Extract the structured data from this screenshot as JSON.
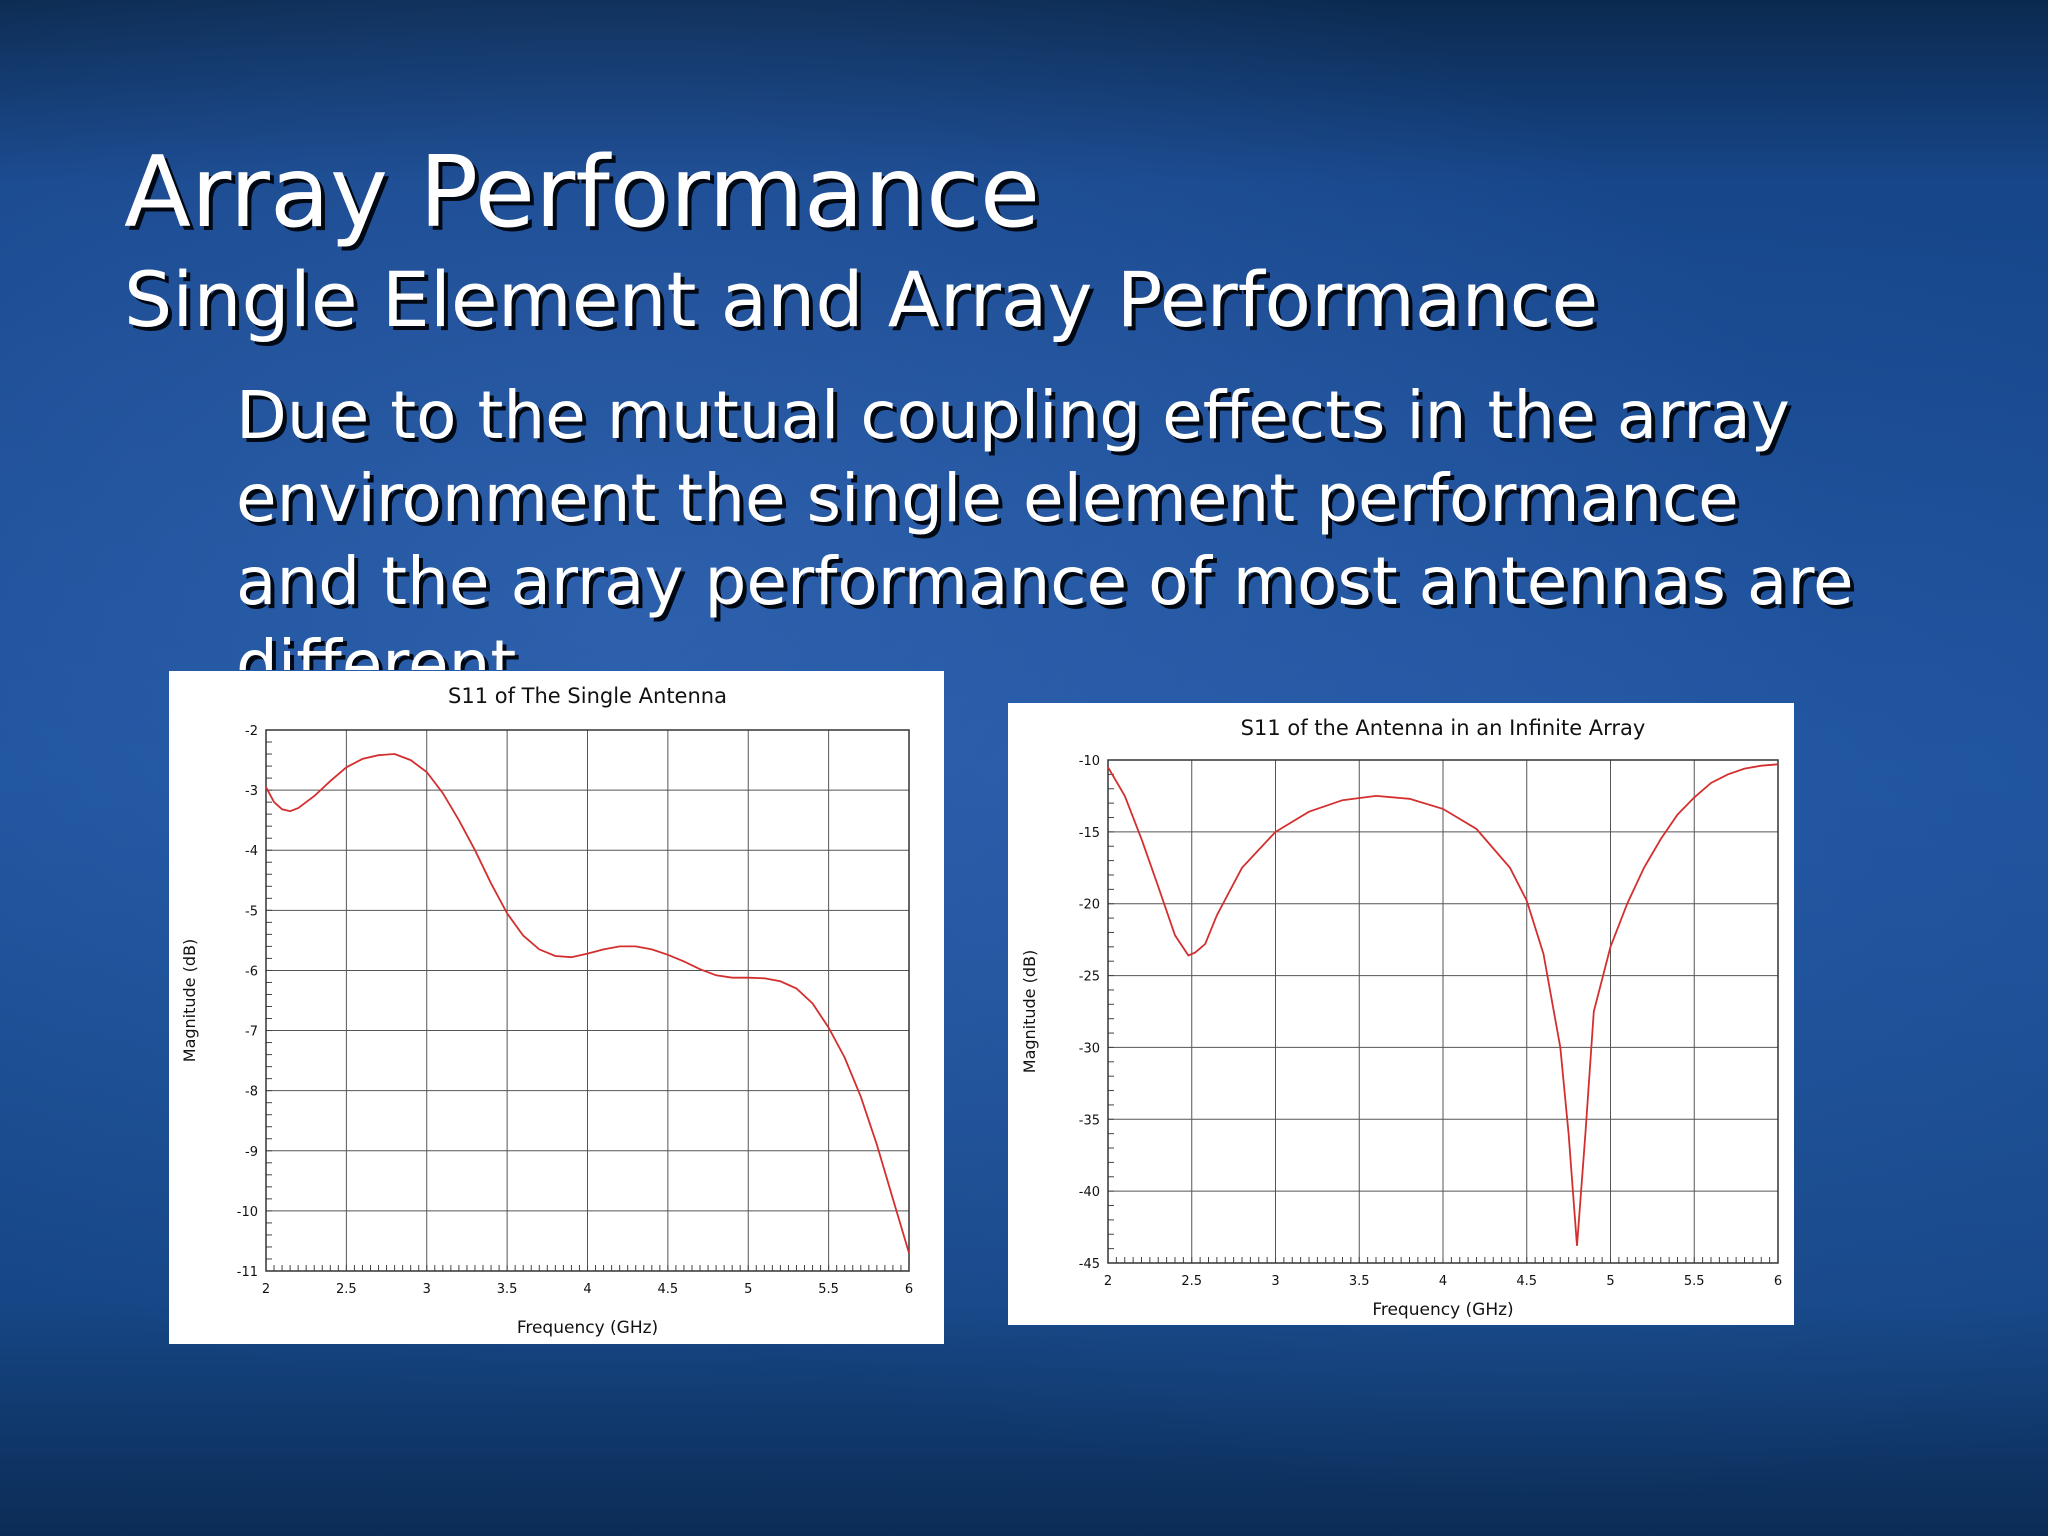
{
  "slide": {
    "title": "Array Performance",
    "subtitle": "Single Element and Array Performance",
    "body": "Due to the mutual coupling effects in the array environment the single element performance and the array performance of most antennas are different"
  },
  "chart_data": [
    {
      "type": "line",
      "title": "S11 of The Single Antenna",
      "xlabel": "Frequency (GHz)",
      "ylabel": "Magnitude (dB)",
      "xlim": [
        2,
        6
      ],
      "ylim": [
        -11,
        -2
      ],
      "xticks": [
        2,
        2.5,
        3,
        3.5,
        4,
        4.5,
        5,
        5.5,
        6
      ],
      "xtick_labels": [
        "2",
        "2.5",
        "3",
        "3.5",
        "4",
        "4.5",
        "5",
        "5.5",
        "6"
      ],
      "yticks": [
        -2,
        -3,
        -4,
        -5,
        -6,
        -7,
        -8,
        -9,
        -10,
        -11
      ],
      "ytick_labels": [
        "-2",
        "-3",
        "-4",
        "-5",
        "-6",
        "-7",
        "-8",
        "-9",
        "-10",
        "-11"
      ],
      "grid": true,
      "line_color": "#d32f2f",
      "series": [
        {
          "x": [
            2.0,
            2.05,
            2.1,
            2.15,
            2.2,
            2.3,
            2.4,
            2.5,
            2.6,
            2.7,
            2.8,
            2.9,
            3.0,
            3.1,
            3.2,
            3.3,
            3.4,
            3.5,
            3.6,
            3.7,
            3.8,
            3.9,
            4.0,
            4.1,
            4.2,
            4.3,
            4.4,
            4.5,
            4.6,
            4.7,
            4.8,
            4.9,
            5.0,
            5.1,
            5.2,
            5.3,
            5.4,
            5.5,
            5.6,
            5.7,
            5.8,
            5.9,
            6.0
          ],
          "y": [
            -2.95,
            -3.2,
            -3.32,
            -3.35,
            -3.3,
            -3.1,
            -2.85,
            -2.62,
            -2.48,
            -2.42,
            -2.4,
            -2.5,
            -2.7,
            -3.05,
            -3.5,
            -4.0,
            -4.55,
            -5.05,
            -5.42,
            -5.65,
            -5.76,
            -5.78,
            -5.72,
            -5.65,
            -5.6,
            -5.6,
            -5.65,
            -5.74,
            -5.85,
            -5.98,
            -6.08,
            -6.12,
            -6.12,
            -6.13,
            -6.18,
            -6.3,
            -6.55,
            -6.95,
            -7.45,
            -8.1,
            -8.9,
            -9.8,
            -10.7
          ]
        }
      ]
    },
    {
      "type": "line",
      "title": "S11 of the Antenna in an Infinite Array",
      "xlabel": "Frequency (GHz)",
      "ylabel": "Magnitude (dB)",
      "xlim": [
        2,
        6
      ],
      "ylim": [
        -45,
        -10
      ],
      "xticks": [
        2,
        2.5,
        3,
        3.5,
        4,
        4.5,
        5,
        5.5,
        6
      ],
      "xtick_labels": [
        "2",
        "2.5",
        "3",
        "3.5",
        "4",
        "4.5",
        "5",
        "5.5",
        "6"
      ],
      "yticks": [
        -10,
        -15,
        -20,
        -25,
        -30,
        -35,
        -40,
        -45
      ],
      "ytick_labels": [
        "-10",
        "-15",
        "-20",
        "-25",
        "-30",
        "-35",
        "-40",
        "-45"
      ],
      "grid": true,
      "line_color": "#d32f2f",
      "series": [
        {
          "x": [
            2.0,
            2.1,
            2.2,
            2.3,
            2.4,
            2.48,
            2.52,
            2.58,
            2.65,
            2.8,
            3.0,
            3.2,
            3.4,
            3.6,
            3.8,
            4.0,
            4.2,
            4.4,
            4.5,
            4.6,
            4.7,
            4.75,
            4.8,
            4.85,
            4.9,
            5.0,
            5.1,
            5.2,
            5.3,
            5.4,
            5.5,
            5.6,
            5.7,
            5.8,
            5.9,
            6.0
          ],
          "y": [
            -10.5,
            -12.5,
            -15.5,
            -18.8,
            -22.2,
            -23.6,
            -23.4,
            -22.8,
            -20.8,
            -17.5,
            -15.0,
            -13.6,
            -12.8,
            -12.5,
            -12.7,
            -13.4,
            -14.8,
            -17.5,
            -19.8,
            -23.5,
            -30.0,
            -36.0,
            -43.8,
            -36.0,
            -27.5,
            -23.0,
            -20.0,
            -17.5,
            -15.5,
            -13.8,
            -12.6,
            -11.6,
            -11.0,
            -10.6,
            -10.4,
            -10.3
          ]
        }
      ]
    }
  ]
}
